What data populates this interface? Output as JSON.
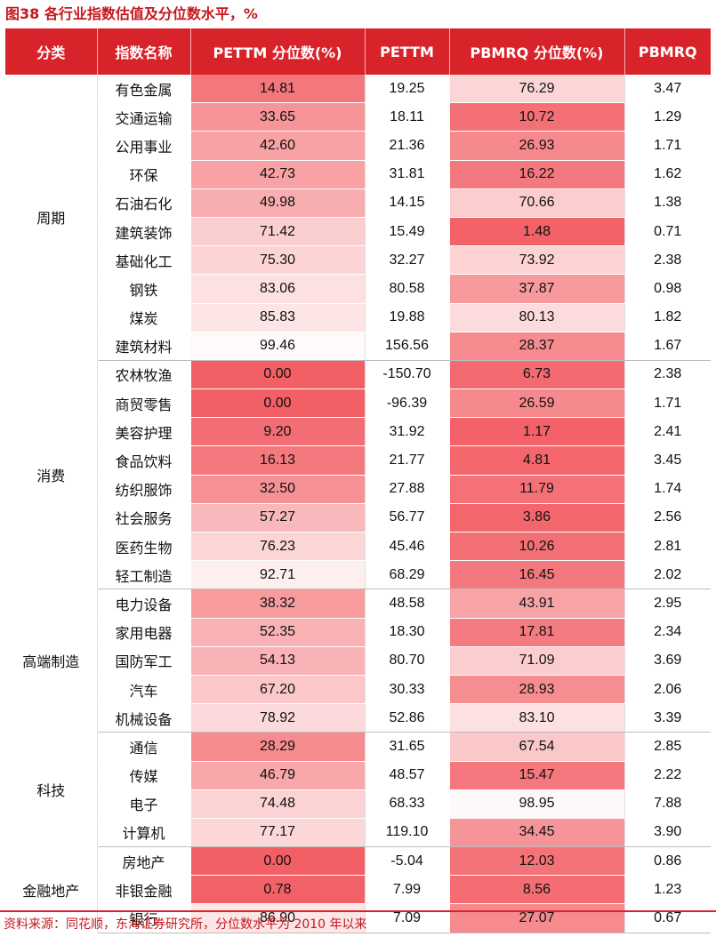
{
  "title": "图38 各行业指数估值及分位数水平，%",
  "headers": [
    "分类",
    "指数名称",
    "PETTM 分位数(%)",
    "PETTM",
    "PBMRQ 分位数(%)",
    "PBMRQ"
  ],
  "groups": [
    {
      "category": "周期",
      "rows": [
        [
          "有色金属",
          "14.81",
          "19.25",
          "76.29",
          "3.47"
        ],
        [
          "交通运输",
          "33.65",
          "18.11",
          "10.72",
          "1.29"
        ],
        [
          "公用事业",
          "42.60",
          "21.36",
          "26.93",
          "1.71"
        ],
        [
          "环保",
          "42.73",
          "31.81",
          "16.22",
          "1.62"
        ],
        [
          "石油石化",
          "49.98",
          "14.15",
          "70.66",
          "1.38"
        ],
        [
          "建筑装饰",
          "71.42",
          "15.49",
          "1.48",
          "0.71"
        ],
        [
          "基础化工",
          "75.30",
          "32.27",
          "73.92",
          "2.38"
        ],
        [
          "钢铁",
          "83.06",
          "80.58",
          "37.87",
          "0.98"
        ],
        [
          "煤炭",
          "85.83",
          "19.88",
          "80.13",
          "1.82"
        ],
        [
          "建筑材料",
          "99.46",
          "156.56",
          "28.37",
          "1.67"
        ]
      ]
    },
    {
      "category": "消费",
      "rows": [
        [
          "农林牧渔",
          "0.00",
          "-150.70",
          "6.73",
          "2.38"
        ],
        [
          "商贸零售",
          "0.00",
          "-96.39",
          "26.59",
          "1.71"
        ],
        [
          "美容护理",
          "9.20",
          "31.92",
          "1.17",
          "2.41"
        ],
        [
          "食品饮料",
          "16.13",
          "21.77",
          "4.81",
          "3.45"
        ],
        [
          "纺织服饰",
          "32.50",
          "27.88",
          "11.79",
          "1.74"
        ],
        [
          "社会服务",
          "57.27",
          "56.77",
          "3.86",
          "2.56"
        ],
        [
          "医药生物",
          "76.23",
          "45.46",
          "10.26",
          "2.81"
        ],
        [
          "轻工制造",
          "92.71",
          "68.29",
          "16.45",
          "2.02"
        ]
      ]
    },
    {
      "category": "高端制造",
      "rows": [
        [
          "电力设备",
          "38.32",
          "48.58",
          "43.91",
          "2.95"
        ],
        [
          "家用电器",
          "52.35",
          "18.30",
          "17.81",
          "2.34"
        ],
        [
          "国防军工",
          "54.13",
          "80.70",
          "71.09",
          "3.69"
        ],
        [
          "汽车",
          "67.20",
          "30.33",
          "28.93",
          "2.06"
        ],
        [
          "机械设备",
          "78.92",
          "52.86",
          "83.10",
          "3.39"
        ]
      ]
    },
    {
      "category": "科技",
      "rows": [
        [
          "通信",
          "28.29",
          "31.65",
          "67.54",
          "2.85"
        ],
        [
          "传媒",
          "46.79",
          "48.57",
          "15.47",
          "2.22"
        ],
        [
          "电子",
          "74.48",
          "68.33",
          "98.95",
          "7.88"
        ],
        [
          "计算机",
          "77.17",
          "119.10",
          "34.45",
          "3.90"
        ]
      ]
    },
    {
      "category": "金融地产",
      "rows": [
        [
          "房地产",
          "0.00",
          "-5.04",
          "12.03",
          "0.86"
        ],
        [
          "非银金融",
          "0.78",
          "7.99",
          "8.56",
          "1.23"
        ],
        [
          "银行",
          "86.90",
          "7.09",
          "27.07",
          "0.67"
        ]
      ]
    }
  ],
  "colors": {
    "header_bg": "#d9232b",
    "title_text": "#c4161c",
    "heat_low": "#f26066",
    "heat_high": "#fffafa"
  },
  "source": "资料来源：同花顺，东海证券研究所，分位数水平为 2010 年以来"
}
